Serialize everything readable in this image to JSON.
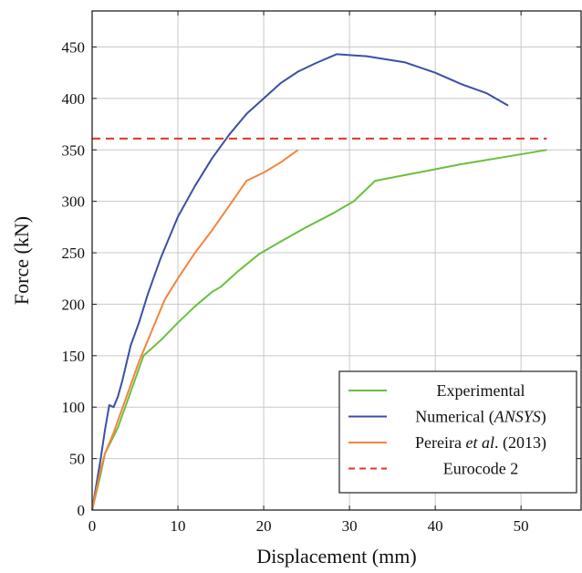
{
  "chart_data": {
    "type": "line",
    "xlabel": "Displacement (mm)",
    "ylabel": "Force (kN)",
    "xlim": [
      0,
      57
    ],
    "ylim": [
      0,
      485
    ],
    "xticks": [
      0,
      10,
      20,
      30,
      40,
      50
    ],
    "yticks": [
      0,
      50,
      100,
      150,
      200,
      250,
      300,
      350,
      400,
      450
    ],
    "grid": true,
    "legend_position": "bottom-right",
    "series": [
      {
        "name": "Experimental",
        "color": "#6cbf3f",
        "dash": "solid",
        "points": [
          [
            0,
            0
          ],
          [
            1,
            35
          ],
          [
            1.5,
            55
          ],
          [
            3,
            80
          ],
          [
            4.5,
            115
          ],
          [
            6,
            150
          ],
          [
            8,
            165
          ],
          [
            10,
            182
          ],
          [
            12,
            198
          ],
          [
            14,
            212
          ],
          [
            15,
            217
          ],
          [
            17,
            232
          ],
          [
            19.5,
            249
          ],
          [
            22,
            261
          ],
          [
            25,
            275
          ],
          [
            28,
            288
          ],
          [
            30.5,
            300
          ],
          [
            33,
            320
          ],
          [
            38,
            328
          ],
          [
            43,
            336
          ],
          [
            48,
            343
          ],
          [
            53,
            350
          ]
        ]
      },
      {
        "name": "Numerical (ANSYS)",
        "name_parts": [
          "Numerical (",
          "ANSYS",
          ")"
        ],
        "color": "#3c4fa5",
        "dash": "solid",
        "points": [
          [
            0,
            0
          ],
          [
            0.5,
            25
          ],
          [
            1,
            50
          ],
          [
            1.5,
            78
          ],
          [
            2,
            102
          ],
          [
            2.5,
            100
          ],
          [
            3,
            110
          ],
          [
            3.5,
            125
          ],
          [
            4.5,
            160
          ],
          [
            5.5,
            183
          ],
          [
            6.5,
            210
          ],
          [
            8,
            245
          ],
          [
            10,
            285
          ],
          [
            12,
            315
          ],
          [
            14,
            342
          ],
          [
            16,
            365
          ],
          [
            18,
            385
          ],
          [
            20,
            400
          ],
          [
            22,
            415
          ],
          [
            24,
            426
          ],
          [
            26,
            434
          ],
          [
            28.5,
            443
          ],
          [
            32,
            441
          ],
          [
            36.5,
            435
          ],
          [
            40,
            425
          ],
          [
            43,
            414
          ],
          [
            46,
            405
          ],
          [
            48.5,
            393
          ]
        ]
      },
      {
        "name": "Pereira et al. (2013)",
        "name_parts": [
          "Pereira ",
          "et al",
          ". (2013)"
        ],
        "color": "#f4843d",
        "dash": "solid",
        "points": [
          [
            0,
            0
          ],
          [
            0.5,
            20
          ],
          [
            1,
            40
          ],
          [
            1.5,
            55
          ],
          [
            2.5,
            75
          ],
          [
            4,
            110
          ],
          [
            5.5,
            145
          ],
          [
            7,
            175
          ],
          [
            8.5,
            205
          ],
          [
            10,
            225
          ],
          [
            12,
            250
          ],
          [
            14,
            272
          ],
          [
            16,
            296
          ],
          [
            18,
            320
          ],
          [
            20,
            328
          ],
          [
            22,
            338
          ],
          [
            24,
            350
          ]
        ]
      },
      {
        "name": "Eurocode 2",
        "color": "#e8302a",
        "dash": "dashed",
        "points": [
          [
            0,
            361
          ],
          [
            53,
            361
          ]
        ]
      }
    ]
  }
}
